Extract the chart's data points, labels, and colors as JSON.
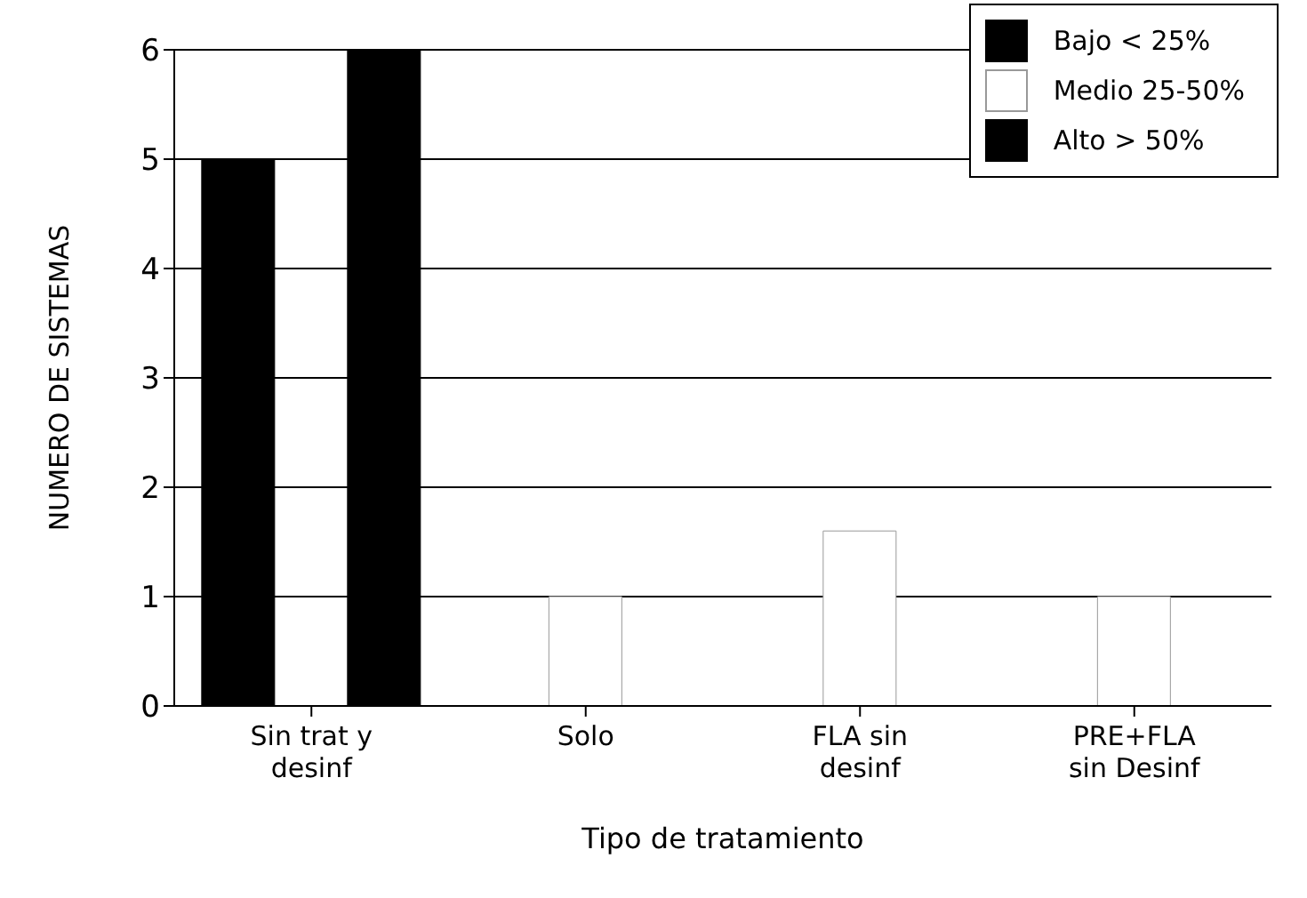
{
  "chart_data": {
    "type": "bar",
    "xlabel": "Tipo de tratamiento",
    "ylabel": "NUMERO DE SISTEMAS",
    "categories": [
      "Sin trat y desinf",
      "Solo",
      "FLA sin desinf",
      "PRE+FLA sin Desinf"
    ],
    "series": [
      {
        "name": "Bajo < 25%",
        "color": "#000000",
        "values": [
          5,
          0,
          0,
          0
        ]
      },
      {
        "name": "Medio 25-50%",
        "color": "#ffffff",
        "values": [
          0,
          1,
          1.6,
          1
        ]
      },
      {
        "name": "Alto > 50%",
        "color": "#000000",
        "values": [
          6,
          0,
          0,
          0
        ]
      }
    ],
    "ylim": [
      0,
      6
    ],
    "yticks": [
      0,
      1,
      2,
      3,
      4,
      5,
      6
    ],
    "grid": "y",
    "legend": "top right"
  }
}
